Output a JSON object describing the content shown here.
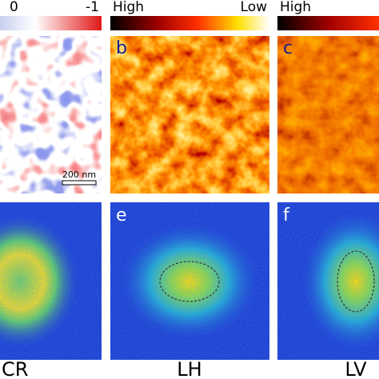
{
  "top_row": [
    {
      "colorbar_labels": [
        "0",
        "-1"
      ],
      "scale_bar": "200 nm"
    },
    {
      "label": "b",
      "colorbar_labels": [
        "High",
        "Low"
      ]
    },
    {
      "label": "c",
      "colorbar_labels": [
        "High"
      ]
    }
  ],
  "bottom_row": [
    {
      "caption": "CR"
    },
    {
      "label": "e",
      "caption": "LH"
    },
    {
      "label": "f",
      "caption": "LV"
    }
  ]
}
